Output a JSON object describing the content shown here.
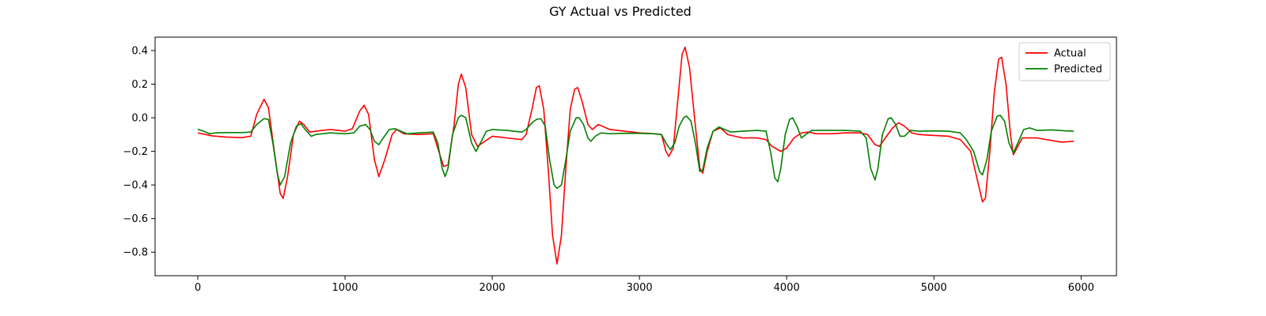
{
  "chart_data": {
    "type": "line",
    "title": "GY Actual vs Predicted",
    "xlabel": "",
    "ylabel": "",
    "xlim": [
      -290,
      6240
    ],
    "ylim": [
      -0.94,
      0.48
    ],
    "xticks": [
      0,
      1000,
      2000,
      3000,
      4000,
      5000,
      6000
    ],
    "xtick_labels": [
      "0",
      "1000",
      "2000",
      "3000",
      "4000",
      "5000",
      "6000"
    ],
    "yticks": [
      0.4,
      0.2,
      0.0,
      -0.2,
      -0.4,
      -0.6,
      -0.8
    ],
    "ytick_labels": [
      "0.4",
      "0.2",
      "0.0",
      "−0.2",
      "−0.4",
      "−0.6",
      "−0.8"
    ],
    "grid": false,
    "legend_position": "top-right",
    "series": [
      {
        "name": "Actual",
        "color": "#ff0000",
        "points": [
          [
            0,
            -0.09
          ],
          [
            100,
            -0.108
          ],
          [
            200,
            -0.115
          ],
          [
            300,
            -0.118
          ],
          [
            360,
            -0.11
          ],
          [
            400,
            0.02
          ],
          [
            450,
            0.11
          ],
          [
            480,
            0.06
          ],
          [
            520,
            -0.2
          ],
          [
            560,
            -0.45
          ],
          [
            580,
            -0.48
          ],
          [
            610,
            -0.35
          ],
          [
            650,
            -0.1
          ],
          [
            690,
            -0.02
          ],
          [
            720,
            -0.04
          ],
          [
            760,
            -0.085
          ],
          [
            800,
            -0.08
          ],
          [
            900,
            -0.07
          ],
          [
            1000,
            -0.08
          ],
          [
            1050,
            -0.065
          ],
          [
            1100,
            0.04
          ],
          [
            1130,
            0.075
          ],
          [
            1160,
            0.02
          ],
          [
            1200,
            -0.25
          ],
          [
            1230,
            -0.35
          ],
          [
            1270,
            -0.25
          ],
          [
            1320,
            -0.1
          ],
          [
            1350,
            -0.07
          ],
          [
            1400,
            -0.095
          ],
          [
            1500,
            -0.1
          ],
          [
            1600,
            -0.095
          ],
          [
            1630,
            -0.18
          ],
          [
            1670,
            -0.29
          ],
          [
            1700,
            -0.28
          ],
          [
            1740,
            -0.05
          ],
          [
            1770,
            0.2
          ],
          [
            1790,
            0.26
          ],
          [
            1820,
            0.18
          ],
          [
            1860,
            -0.1
          ],
          [
            1900,
            -0.17
          ],
          [
            1950,
            -0.14
          ],
          [
            2000,
            -0.11
          ],
          [
            2100,
            -0.12
          ],
          [
            2200,
            -0.13
          ],
          [
            2230,
            -0.1
          ],
          [
            2270,
            0.05
          ],
          [
            2300,
            0.18
          ],
          [
            2320,
            0.19
          ],
          [
            2350,
            0.05
          ],
          [
            2380,
            -0.3
          ],
          [
            2410,
            -0.7
          ],
          [
            2440,
            -0.87
          ],
          [
            2470,
            -0.7
          ],
          [
            2500,
            -0.3
          ],
          [
            2530,
            0.05
          ],
          [
            2560,
            0.17
          ],
          [
            2580,
            0.18
          ],
          [
            2610,
            0.1
          ],
          [
            2650,
            -0.04
          ],
          [
            2680,
            -0.07
          ],
          [
            2720,
            -0.04
          ],
          [
            2760,
            -0.055
          ],
          [
            2800,
            -0.07
          ],
          [
            2900,
            -0.08
          ],
          [
            3000,
            -0.09
          ],
          [
            3100,
            -0.095
          ],
          [
            3150,
            -0.1
          ],
          [
            3180,
            -0.2
          ],
          [
            3200,
            -0.23
          ],
          [
            3230,
            -0.18
          ],
          [
            3260,
            0.1
          ],
          [
            3290,
            0.38
          ],
          [
            3310,
            0.42
          ],
          [
            3340,
            0.3
          ],
          [
            3380,
            -0.05
          ],
          [
            3410,
            -0.3
          ],
          [
            3430,
            -0.33
          ],
          [
            3460,
            -0.2
          ],
          [
            3500,
            -0.08
          ],
          [
            3550,
            -0.06
          ],
          [
            3600,
            -0.1
          ],
          [
            3700,
            -0.12
          ],
          [
            3800,
            -0.12
          ],
          [
            3860,
            -0.13
          ],
          [
            3900,
            -0.17
          ],
          [
            3960,
            -0.2
          ],
          [
            4000,
            -0.18
          ],
          [
            4050,
            -0.12
          ],
          [
            4100,
            -0.09
          ],
          [
            4150,
            -0.085
          ],
          [
            4200,
            -0.095
          ],
          [
            4300,
            -0.095
          ],
          [
            4400,
            -0.09
          ],
          [
            4500,
            -0.09
          ],
          [
            4550,
            -0.1
          ],
          [
            4600,
            -0.16
          ],
          [
            4630,
            -0.17
          ],
          [
            4670,
            -0.12
          ],
          [
            4720,
            -0.06
          ],
          [
            4760,
            -0.03
          ],
          [
            4800,
            -0.05
          ],
          [
            4850,
            -0.09
          ],
          [
            4900,
            -0.1
          ],
          [
            5000,
            -0.105
          ],
          [
            5100,
            -0.11
          ],
          [
            5180,
            -0.13
          ],
          [
            5250,
            -0.2
          ],
          [
            5290,
            -0.35
          ],
          [
            5330,
            -0.5
          ],
          [
            5350,
            -0.48
          ],
          [
            5380,
            -0.2
          ],
          [
            5410,
            0.15
          ],
          [
            5440,
            0.35
          ],
          [
            5460,
            0.36
          ],
          [
            5490,
            0.2
          ],
          [
            5520,
            -0.1
          ],
          [
            5540,
            -0.22
          ],
          [
            5570,
            -0.17
          ],
          [
            5600,
            -0.12
          ],
          [
            5700,
            -0.12
          ],
          [
            5800,
            -0.135
          ],
          [
            5870,
            -0.145
          ],
          [
            5950,
            -0.14
          ]
        ]
      },
      {
        "name": "Predicted",
        "color": "#008000",
        "points": [
          [
            0,
            -0.068
          ],
          [
            40,
            -0.08
          ],
          [
            80,
            -0.095
          ],
          [
            120,
            -0.09
          ],
          [
            200,
            -0.088
          ],
          [
            300,
            -0.088
          ],
          [
            360,
            -0.085
          ],
          [
            400,
            -0.04
          ],
          [
            450,
            -0.005
          ],
          [
            480,
            -0.01
          ],
          [
            510,
            -0.15
          ],
          [
            540,
            -0.33
          ],
          [
            560,
            -0.4
          ],
          [
            590,
            -0.35
          ],
          [
            630,
            -0.15
          ],
          [
            670,
            -0.05
          ],
          [
            700,
            -0.035
          ],
          [
            730,
            -0.07
          ],
          [
            770,
            -0.11
          ],
          [
            800,
            -0.1
          ],
          [
            900,
            -0.09
          ],
          [
            1000,
            -0.095
          ],
          [
            1060,
            -0.09
          ],
          [
            1100,
            -0.05
          ],
          [
            1140,
            -0.04
          ],
          [
            1170,
            -0.07
          ],
          [
            1200,
            -0.14
          ],
          [
            1230,
            -0.16
          ],
          [
            1260,
            -0.12
          ],
          [
            1300,
            -0.07
          ],
          [
            1340,
            -0.065
          ],
          [
            1380,
            -0.08
          ],
          [
            1420,
            -0.095
          ],
          [
            1500,
            -0.09
          ],
          [
            1600,
            -0.085
          ],
          [
            1630,
            -0.15
          ],
          [
            1660,
            -0.3
          ],
          [
            1680,
            -0.35
          ],
          [
            1700,
            -0.3
          ],
          [
            1730,
            -0.1
          ],
          [
            1770,
            0.0
          ],
          [
            1790,
            0.015
          ],
          [
            1820,
            0.0
          ],
          [
            1860,
            -0.15
          ],
          [
            1890,
            -0.2
          ],
          [
            1920,
            -0.15
          ],
          [
            1960,
            -0.08
          ],
          [
            2000,
            -0.07
          ],
          [
            2100,
            -0.075
          ],
          [
            2200,
            -0.085
          ],
          [
            2230,
            -0.07
          ],
          [
            2270,
            -0.03
          ],
          [
            2300,
            -0.01
          ],
          [
            2330,
            -0.005
          ],
          [
            2360,
            -0.05
          ],
          [
            2390,
            -0.25
          ],
          [
            2420,
            -0.4
          ],
          [
            2440,
            -0.42
          ],
          [
            2470,
            -0.4
          ],
          [
            2500,
            -0.25
          ],
          [
            2530,
            -0.08
          ],
          [
            2570,
            0.0
          ],
          [
            2590,
            0.0
          ],
          [
            2620,
            -0.04
          ],
          [
            2650,
            -0.12
          ],
          [
            2670,
            -0.14
          ],
          [
            2700,
            -0.11
          ],
          [
            2740,
            -0.09
          ],
          [
            2800,
            -0.095
          ],
          [
            2900,
            -0.092
          ],
          [
            3000,
            -0.093
          ],
          [
            3100,
            -0.095
          ],
          [
            3150,
            -0.1
          ],
          [
            3180,
            -0.15
          ],
          [
            3210,
            -0.19
          ],
          [
            3240,
            -0.15
          ],
          [
            3270,
            -0.05
          ],
          [
            3300,
            0.0
          ],
          [
            3320,
            0.01
          ],
          [
            3350,
            -0.02
          ],
          [
            3380,
            -0.15
          ],
          [
            3410,
            -0.32
          ],
          [
            3430,
            -0.31
          ],
          [
            3460,
            -0.18
          ],
          [
            3500,
            -0.08
          ],
          [
            3540,
            -0.055
          ],
          [
            3580,
            -0.07
          ],
          [
            3620,
            -0.085
          ],
          [
            3700,
            -0.08
          ],
          [
            3800,
            -0.075
          ],
          [
            3860,
            -0.08
          ],
          [
            3890,
            -0.2
          ],
          [
            3920,
            -0.36
          ],
          [
            3940,
            -0.38
          ],
          [
            3960,
            -0.3
          ],
          [
            3990,
            -0.1
          ],
          [
            4020,
            -0.01
          ],
          [
            4040,
            0.0
          ],
          [
            4070,
            -0.05
          ],
          [
            4100,
            -0.12
          ],
          [
            4130,
            -0.1
          ],
          [
            4170,
            -0.075
          ],
          [
            4300,
            -0.075
          ],
          [
            4400,
            -0.075
          ],
          [
            4500,
            -0.08
          ],
          [
            4540,
            -0.12
          ],
          [
            4570,
            -0.3
          ],
          [
            4600,
            -0.37
          ],
          [
            4620,
            -0.3
          ],
          [
            4650,
            -0.1
          ],
          [
            4690,
            -0.005
          ],
          [
            4710,
            0.0
          ],
          [
            4740,
            -0.04
          ],
          [
            4770,
            -0.11
          ],
          [
            4800,
            -0.11
          ],
          [
            4840,
            -0.075
          ],
          [
            4900,
            -0.08
          ],
          [
            5000,
            -0.078
          ],
          [
            5100,
            -0.08
          ],
          [
            5180,
            -0.09
          ],
          [
            5220,
            -0.13
          ],
          [
            5270,
            -0.2
          ],
          [
            5310,
            -0.32
          ],
          [
            5330,
            -0.34
          ],
          [
            5360,
            -0.25
          ],
          [
            5390,
            -0.08
          ],
          [
            5430,
            0.01
          ],
          [
            5450,
            0.015
          ],
          [
            5480,
            -0.02
          ],
          [
            5510,
            -0.15
          ],
          [
            5540,
            -0.21
          ],
          [
            5570,
            -0.15
          ],
          [
            5610,
            -0.07
          ],
          [
            5650,
            -0.06
          ],
          [
            5700,
            -0.075
          ],
          [
            5800,
            -0.072
          ],
          [
            5900,
            -0.078
          ],
          [
            5950,
            -0.08
          ]
        ]
      }
    ]
  }
}
